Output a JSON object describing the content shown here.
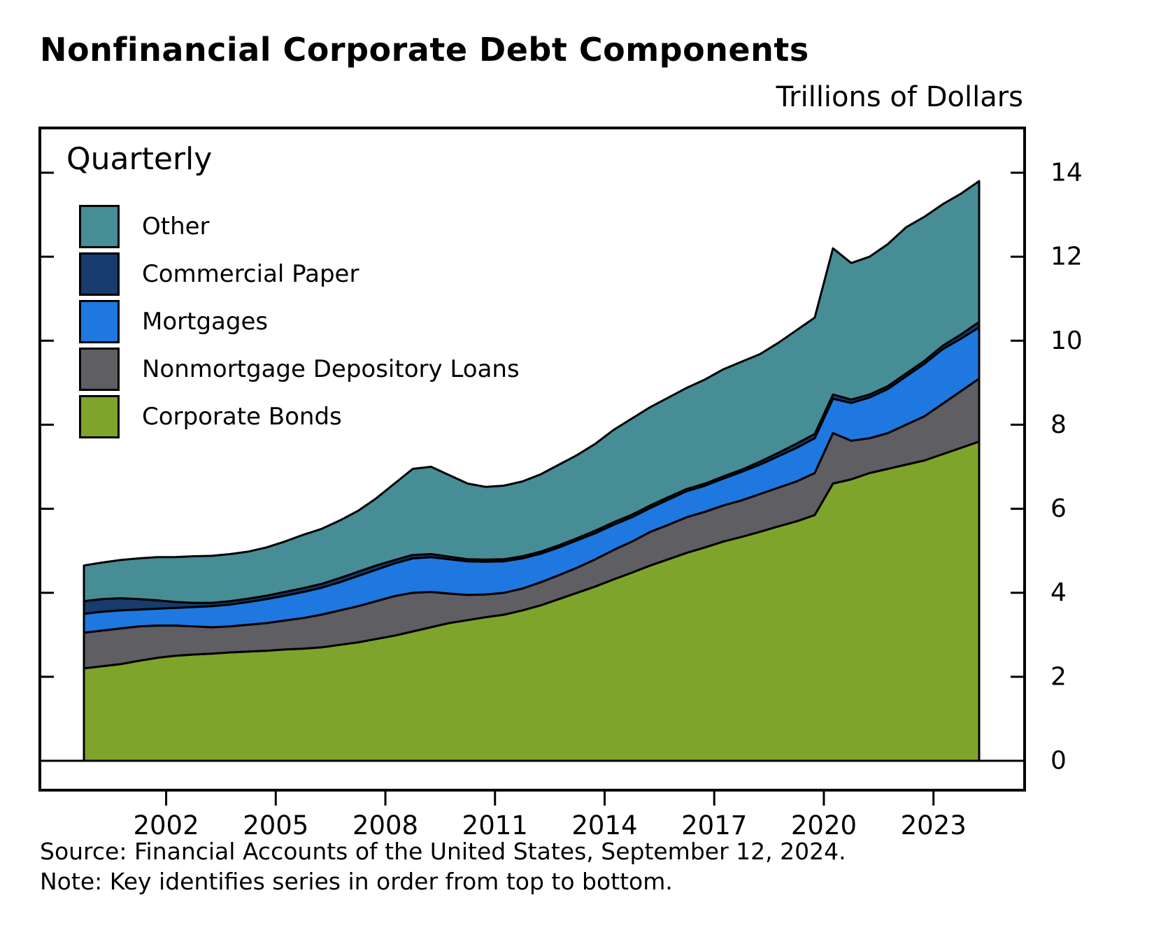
{
  "title": "Nonfinancial Corporate Debt Components",
  "unit_label": "Trillions of Dollars",
  "frequency_label": "Quarterly",
  "source": "Source: Financial Accounts of the United States, September 12, 2024.",
  "note": "Note: Key identifies series in order from top to bottom.",
  "chart_data": {
    "type": "area",
    "stacked": true,
    "title": "Nonfinancial Corporate Debt Components",
    "ylabel": "Trillions of Dollars",
    "ylim": [
      0,
      14
    ],
    "yticks": [
      0,
      2,
      4,
      6,
      8,
      10,
      12,
      14
    ],
    "xlim": [
      1999.75,
      2024.25
    ],
    "xtick_years": [
      2002,
      2005,
      2008,
      2011,
      2014,
      2017,
      2020,
      2023
    ],
    "legend_order_top_to_bottom": [
      "Other",
      "Commercial Paper",
      "Mortgages",
      "Nonmortgage Depository Loans",
      "Corporate Bonds"
    ],
    "axis_color": "#000000",
    "x": [
      1999.75,
      2000.25,
      2000.75,
      2001.25,
      2001.75,
      2002.25,
      2002.75,
      2003.25,
      2003.75,
      2004.25,
      2004.75,
      2005.25,
      2005.75,
      2006.25,
      2006.75,
      2007.25,
      2007.75,
      2008.25,
      2008.75,
      2009.25,
      2009.75,
      2010.25,
      2010.75,
      2011.25,
      2011.75,
      2012.25,
      2012.75,
      2013.25,
      2013.75,
      2014.25,
      2014.75,
      2015.25,
      2015.75,
      2016.25,
      2016.75,
      2017.25,
      2017.75,
      2018.25,
      2018.75,
      2019.25,
      2019.75,
      2020.25,
      2020.75,
      2021.25,
      2021.75,
      2022.25,
      2022.75,
      2023.25,
      2023.75,
      2024.25
    ],
    "series": [
      {
        "name": "Corporate Bonds",
        "color": "#7fa42b",
        "values": [
          2.2,
          2.25,
          2.3,
          2.38,
          2.45,
          2.5,
          2.53,
          2.55,
          2.58,
          2.6,
          2.62,
          2.65,
          2.67,
          2.7,
          2.76,
          2.82,
          2.9,
          2.98,
          3.08,
          3.18,
          3.28,
          3.35,
          3.42,
          3.48,
          3.58,
          3.7,
          3.85,
          4.0,
          4.15,
          4.32,
          4.48,
          4.65,
          4.8,
          4.95,
          5.08,
          5.22,
          5.33,
          5.45,
          5.58,
          5.7,
          5.85,
          6.6,
          6.7,
          6.85,
          6.95,
          7.05,
          7.15,
          7.3,
          7.45,
          7.6
        ]
      },
      {
        "name": "Nonmortgage Depository Loans",
        "color": "#5e5e63",
        "values": [
          0.85,
          0.85,
          0.85,
          0.82,
          0.77,
          0.72,
          0.67,
          0.63,
          0.62,
          0.64,
          0.66,
          0.69,
          0.73,
          0.78,
          0.82,
          0.86,
          0.9,
          0.94,
          0.92,
          0.84,
          0.7,
          0.6,
          0.54,
          0.52,
          0.52,
          0.55,
          0.57,
          0.6,
          0.65,
          0.7,
          0.74,
          0.8,
          0.82,
          0.85,
          0.85,
          0.86,
          0.87,
          0.9,
          0.92,
          0.95,
          1.0,
          1.2,
          0.92,
          0.83,
          0.85,
          0.95,
          1.05,
          1.2,
          1.35,
          1.5
        ]
      },
      {
        "name": "Mortgages",
        "color": "#1e78e0",
        "values": [
          0.45,
          0.45,
          0.43,
          0.4,
          0.4,
          0.42,
          0.46,
          0.5,
          0.52,
          0.54,
          0.57,
          0.59,
          0.62,
          0.64,
          0.67,
          0.72,
          0.75,
          0.78,
          0.82,
          0.83,
          0.82,
          0.8,
          0.78,
          0.75,
          0.72,
          0.68,
          0.66,
          0.65,
          0.62,
          0.6,
          0.58,
          0.57,
          0.6,
          0.62,
          0.62,
          0.64,
          0.68,
          0.7,
          0.75,
          0.8,
          0.83,
          0.82,
          0.9,
          0.97,
          1.05,
          1.15,
          1.25,
          1.3,
          1.25,
          1.22
        ]
      },
      {
        "name": "Commercial Paper",
        "color": "#173c6d",
        "values": [
          0.3,
          0.3,
          0.29,
          0.25,
          0.2,
          0.14,
          0.1,
          0.08,
          0.08,
          0.08,
          0.08,
          0.09,
          0.09,
          0.09,
          0.1,
          0.1,
          0.1,
          0.08,
          0.08,
          0.07,
          0.06,
          0.05,
          0.05,
          0.05,
          0.05,
          0.05,
          0.05,
          0.05,
          0.06,
          0.06,
          0.06,
          0.06,
          0.06,
          0.05,
          0.05,
          0.05,
          0.05,
          0.07,
          0.08,
          0.1,
          0.1,
          0.1,
          0.08,
          0.07,
          0.07,
          0.07,
          0.07,
          0.08,
          0.1,
          0.13
        ]
      },
      {
        "name": "Other",
        "color": "#478d96",
        "values": [
          0.85,
          0.87,
          0.91,
          0.97,
          1.03,
          1.07,
          1.11,
          1.12,
          1.12,
          1.12,
          1.15,
          1.2,
          1.27,
          1.31,
          1.37,
          1.45,
          1.6,
          1.82,
          2.05,
          2.08,
          1.94,
          1.8,
          1.73,
          1.75,
          1.78,
          1.84,
          1.92,
          1.98,
          2.07,
          2.2,
          2.29,
          2.34,
          2.37,
          2.41,
          2.48,
          2.55,
          2.57,
          2.56,
          2.62,
          2.7,
          2.77,
          3.48,
          3.25,
          3.28,
          3.38,
          3.48,
          3.43,
          3.37,
          3.35,
          3.35
        ]
      }
    ]
  }
}
